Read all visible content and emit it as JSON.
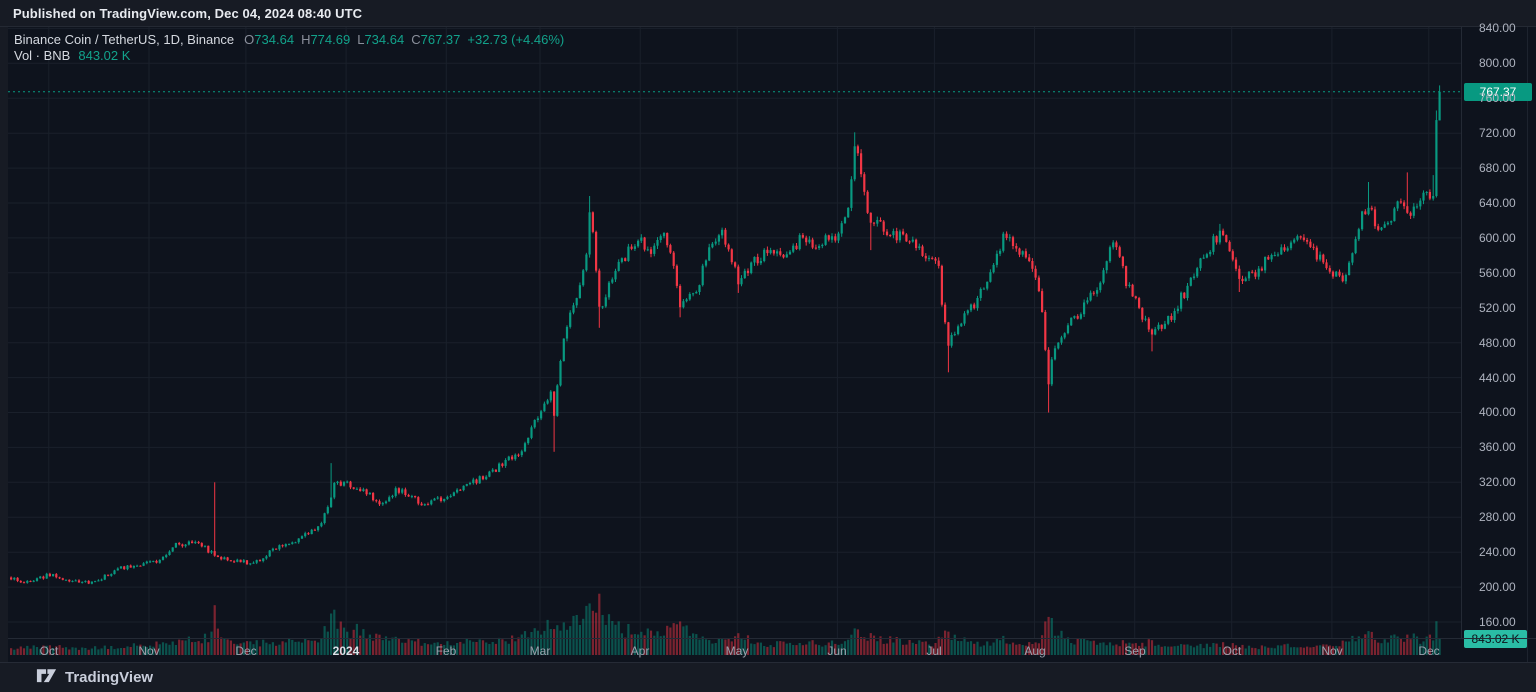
{
  "header": {
    "published": "Published on TradingView.com, Dec 04, 2024 08:40 UTC"
  },
  "legend": {
    "symbol": "Binance Coin / TetherUS, 1D, Binance",
    "ohlc": [
      {
        "k": "O",
        "v": "734.64"
      },
      {
        "k": "H",
        "v": "774.69"
      },
      {
        "k": "L",
        "v": "734.64"
      },
      {
        "k": "C",
        "v": "767.37"
      }
    ],
    "change": "+32.73 (+4.46%)",
    "volume_label": "Vol · BNB",
    "volume_value": "843.02 K"
  },
  "axes": {
    "price_badge": "767.37",
    "volume_badge": "843.02 K"
  },
  "footer": {
    "brand": "TradingView"
  },
  "colors": {
    "up": "#089981",
    "down": "#f23645",
    "grid": "#1a202b",
    "price_line": "#089981",
    "volume_badge_bg": "#2abda5"
  },
  "chart_data": {
    "type": "candlestick",
    "title": "Binance Coin / TetherUS, 1D, Binance",
    "legend_position": "top-left",
    "grid": true,
    "days": 443,
    "last_candle": {
      "open": 734.64,
      "high": 774.69,
      "low": 734.64,
      "close": 767.37,
      "volume_k": 843.02
    },
    "price_line": 767.37,
    "y_axis": {
      "ticks": [
        160,
        200,
        240,
        280,
        320,
        360,
        400,
        440,
        480,
        520,
        560,
        600,
        640,
        680,
        720,
        760,
        800,
        840
      ],
      "min": 150,
      "max": 855
    },
    "x_axis": {
      "months": [
        {
          "label": "Oct",
          "day": 12
        },
        {
          "label": "Nov",
          "day": 43
        },
        {
          "label": "Dec",
          "day": 73
        },
        {
          "label": "2024",
          "day": 104,
          "bold": true
        },
        {
          "label": "Feb",
          "day": 135
        },
        {
          "label": "Mar",
          "day": 164
        },
        {
          "label": "Apr",
          "day": 195
        },
        {
          "label": "May",
          "day": 225
        },
        {
          "label": "Jun",
          "day": 256
        },
        {
          "label": "Jul",
          "day": 286
        },
        {
          "label": "Aug",
          "day": 317
        },
        {
          "label": "Sep",
          "day": 348
        },
        {
          "label": "Oct",
          "day": 378
        },
        {
          "label": "Nov",
          "day": 409
        },
        {
          "label": "Dec",
          "day": 439
        }
      ]
    },
    "close_keypoints": [
      [
        0,
        211
      ],
      [
        5,
        205
      ],
      [
        12,
        214
      ],
      [
        17,
        207
      ],
      [
        24,
        205
      ],
      [
        29,
        212
      ],
      [
        35,
        223
      ],
      [
        40,
        226
      ],
      [
        45,
        228
      ],
      [
        51,
        248
      ],
      [
        57,
        252
      ],
      [
        62,
        240
      ],
      [
        63,
        236
      ],
      [
        68,
        232
      ],
      [
        73,
        228
      ],
      [
        77,
        232
      ],
      [
        82,
        245
      ],
      [
        87,
        252
      ],
      [
        92,
        262
      ],
      [
        96,
        272
      ],
      [
        99,
        305
      ],
      [
        100,
        318
      ],
      [
        104,
        320
      ],
      [
        106,
        316
      ],
      [
        111,
        305
      ],
      [
        115,
        293
      ],
      [
        119,
        310
      ],
      [
        123,
        307
      ],
      [
        127,
        292
      ],
      [
        131,
        298
      ],
      [
        135,
        303
      ],
      [
        139,
        312
      ],
      [
        143,
        320
      ],
      [
        148,
        330
      ],
      [
        153,
        345
      ],
      [
        158,
        358
      ],
      [
        163,
        395
      ],
      [
        167,
        425
      ],
      [
        168,
        400
      ],
      [
        171,
        490
      ],
      [
        175,
        530
      ],
      [
        178,
        575
      ],
      [
        179,
        628
      ],
      [
        180,
        610
      ],
      [
        182,
        515
      ],
      [
        186,
        555
      ],
      [
        190,
        580
      ],
      [
        194,
        598
      ],
      [
        197,
        585
      ],
      [
        200,
        595
      ],
      [
        202,
        610
      ],
      [
        205,
        572
      ],
      [
        207,
        525
      ],
      [
        212,
        538
      ],
      [
        217,
        598
      ],
      [
        220,
        608
      ],
      [
        224,
        562
      ],
      [
        225,
        548
      ],
      [
        230,
        575
      ],
      [
        235,
        588
      ],
      [
        239,
        572
      ],
      [
        244,
        598
      ],
      [
        248,
        590
      ],
      [
        252,
        597
      ],
      [
        256,
        602
      ],
      [
        259,
        635
      ],
      [
        261,
        703
      ],
      [
        262,
        690
      ],
      [
        264,
        660
      ],
      [
        266,
        612
      ],
      [
        268,
        618
      ],
      [
        272,
        605
      ],
      [
        276,
        600
      ],
      [
        280,
        592
      ],
      [
        284,
        580
      ],
      [
        287,
        565
      ],
      [
        288,
        520
      ],
      [
        290,
        478
      ],
      [
        294,
        505
      ],
      [
        299,
        530
      ],
      [
        303,
        565
      ],
      [
        307,
        600
      ],
      [
        311,
        590
      ],
      [
        316,
        570
      ],
      [
        319,
        520
      ],
      [
        321,
        435
      ],
      [
        322,
        462
      ],
      [
        324,
        480
      ],
      [
        328,
        505
      ],
      [
        333,
        525
      ],
      [
        338,
        560
      ],
      [
        341,
        595
      ],
      [
        345,
        550
      ],
      [
        349,
        520
      ],
      [
        353,
        490
      ],
      [
        358,
        505
      ],
      [
        361,
        525
      ],
      [
        366,
        555
      ],
      [
        370,
        585
      ],
      [
        374,
        605
      ],
      [
        378,
        580
      ],
      [
        380,
        550
      ],
      [
        385,
        562
      ],
      [
        390,
        578
      ],
      [
        394,
        592
      ],
      [
        398,
        600
      ],
      [
        403,
        582
      ],
      [
        408,
        565
      ],
      [
        412,
        552
      ],
      [
        415,
        580
      ],
      [
        418,
        625
      ],
      [
        420,
        640
      ],
      [
        422,
        618
      ],
      [
        425,
        612
      ],
      [
        429,
        640
      ],
      [
        432,
        628
      ],
      [
        434,
        635
      ],
      [
        436,
        648
      ],
      [
        439,
        645
      ],
      [
        440,
        648
      ],
      [
        441,
        735
      ],
      [
        442,
        767.37
      ]
    ],
    "wick_events": [
      {
        "day": 63,
        "high": 320
      },
      {
        "day": 99,
        "high": 342
      },
      {
        "day": 168,
        "low": 355
      },
      {
        "day": 179,
        "high": 648
      },
      {
        "day": 182,
        "low": 497
      },
      {
        "day": 207,
        "low": 509
      },
      {
        "day": 225,
        "low": 537
      },
      {
        "day": 261,
        "high": 721
      },
      {
        "day": 266,
        "low": 586
      },
      {
        "day": 290,
        "low": 446
      },
      {
        "day": 321,
        "low": 400
      },
      {
        "day": 353,
        "low": 470
      },
      {
        "day": 374,
        "high": 616
      },
      {
        "day": 380,
        "low": 538
      },
      {
        "day": 420,
        "high": 664
      },
      {
        "day": 432,
        "high": 675
      },
      {
        "day": 440,
        "high": 672
      },
      {
        "day": 441,
        "high": 746
      }
    ],
    "volume_keypoints_k": [
      [
        0,
        380
      ],
      [
        12,
        420
      ],
      [
        25,
        350
      ],
      [
        40,
        520
      ],
      [
        51,
        700
      ],
      [
        62,
        950
      ],
      [
        63,
        2050
      ],
      [
        64,
        1100
      ],
      [
        70,
        700
      ],
      [
        73,
        600
      ],
      [
        85,
        700
      ],
      [
        92,
        800
      ],
      [
        96,
        950
      ],
      [
        100,
        2000
      ],
      [
        102,
        1400
      ],
      [
        104,
        1100
      ],
      [
        107,
        1550
      ],
      [
        110,
        950
      ],
      [
        122,
        700
      ],
      [
        135,
        650
      ],
      [
        145,
        720
      ],
      [
        155,
        800
      ],
      [
        158,
        900
      ],
      [
        163,
        1300
      ],
      [
        168,
        1700
      ],
      [
        171,
        1500
      ],
      [
        175,
        1900
      ],
      [
        179,
        2600
      ],
      [
        181,
        3000
      ],
      [
        183,
        2400
      ],
      [
        186,
        1500
      ],
      [
        190,
        1300
      ],
      [
        194,
        1200
      ],
      [
        200,
        1000
      ],
      [
        206,
        1600
      ],
      [
        207,
        1800
      ],
      [
        210,
        1100
      ],
      [
        214,
        800
      ],
      [
        220,
        900
      ],
      [
        225,
        1000
      ],
      [
        232,
        620
      ],
      [
        240,
        560
      ],
      [
        247,
        700
      ],
      [
        252,
        600
      ],
      [
        256,
        650
      ],
      [
        259,
        900
      ],
      [
        261,
        1300
      ],
      [
        264,
        1000
      ],
      [
        268,
        850
      ],
      [
        273,
        800
      ],
      [
        283,
        600
      ],
      [
        286,
        650
      ],
      [
        290,
        1150
      ],
      [
        294,
        750
      ],
      [
        299,
        600
      ],
      [
        303,
        700
      ],
      [
        307,
        800
      ],
      [
        311,
        650
      ],
      [
        316,
        700
      ],
      [
        319,
        900
      ],
      [
        321,
        2250
      ],
      [
        323,
        1200
      ],
      [
        327,
        850
      ],
      [
        330,
        700
      ],
      [
        338,
        600
      ],
      [
        341,
        680
      ],
      [
        345,
        620
      ],
      [
        349,
        560
      ],
      [
        353,
        700
      ],
      [
        357,
        520
      ],
      [
        361,
        450
      ],
      [
        366,
        480
      ],
      [
        370,
        500
      ],
      [
        374,
        560
      ],
      [
        378,
        500
      ],
      [
        385,
        400
      ],
      [
        390,
        430
      ],
      [
        394,
        460
      ],
      [
        398,
        500
      ],
      [
        403,
        420
      ],
      [
        408,
        450
      ],
      [
        412,
        600
      ],
      [
        415,
        780
      ],
      [
        418,
        1000
      ],
      [
        420,
        1150
      ],
      [
        423,
        820
      ],
      [
        425,
        800
      ],
      [
        429,
        860
      ],
      [
        433,
        1050
      ],
      [
        436,
        820
      ],
      [
        439,
        850
      ],
      [
        440,
        960
      ],
      [
        441,
        1620
      ],
      [
        442,
        843.02
      ]
    ]
  }
}
